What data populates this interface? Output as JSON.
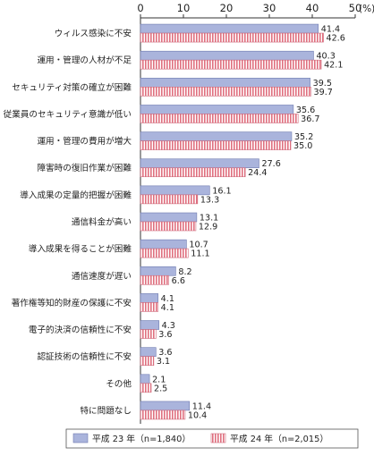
{
  "chart_data": {
    "type": "bar",
    "orientation": "horizontal",
    "xlim": [
      0,
      50
    ],
    "x_ticks": [
      "0",
      "10",
      "20",
      "30",
      "40",
      "50"
    ],
    "unit_label": "(%)",
    "grid": false,
    "legend_position": "bottom",
    "categories": [
      "ウィルス感染に不安",
      "運用・管理の人材が不足",
      "セキュリティ対策の確立が困難",
      "従業員のセキュリティ意識が低い",
      "運用・管理の費用が増大",
      "障害時の復旧作業が困難",
      "導入成果の定量的把握が困難",
      "通信料金が高い",
      "導入成果を得ることが困難",
      "通信速度が遅い",
      "著作権等知的財産の保護に不安",
      "電子的決済の信頼性に不安",
      "認証技術の信頼性に不安",
      "その他",
      "特に問題なし"
    ],
    "series": [
      {
        "name": "平成 23 年（n=1,840）",
        "color": "#aab4dc",
        "pattern": "solid",
        "values": [
          41.4,
          40.3,
          39.5,
          35.6,
          35.2,
          27.6,
          16.1,
          13.1,
          10.7,
          8.2,
          4.1,
          4.3,
          3.6,
          2.1,
          11.4
        ],
        "labels": [
          "41.4",
          "40.3",
          "39.5",
          "35.6",
          "35.2",
          "27.6",
          "16.1",
          "13.1",
          "10.7",
          "8.2",
          "4.1",
          "4.3",
          "3.6",
          "2.1",
          "11.4"
        ]
      },
      {
        "name": "平成 24 年（n=2,015）",
        "color": "#e58a9a",
        "pattern": "vertical-stripes",
        "values": [
          42.6,
          42.1,
          39.7,
          36.7,
          35.0,
          24.4,
          13.3,
          12.9,
          11.1,
          6.6,
          4.1,
          3.6,
          3.1,
          2.5,
          10.4
        ],
        "labels": [
          "42.6",
          "42.1",
          "39.7",
          "36.7",
          "35.0",
          "24.4",
          "13.3",
          "12.9",
          "11.1",
          "6.6",
          "4.1",
          "3.6",
          "3.1",
          "2.5",
          "10.4"
        ]
      }
    ]
  }
}
